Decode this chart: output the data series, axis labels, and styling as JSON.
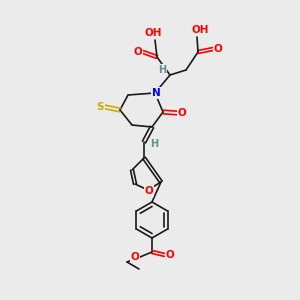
{
  "bg_color": "#ebebeb",
  "bond_color": "#1a1a1a",
  "atom_colors": {
    "O": "#ff0000",
    "N": "#0000ff",
    "S": "#ccaa00",
    "H": "#5f9090",
    "C": "#1a1a1a"
  },
  "font_size": 7.5
}
